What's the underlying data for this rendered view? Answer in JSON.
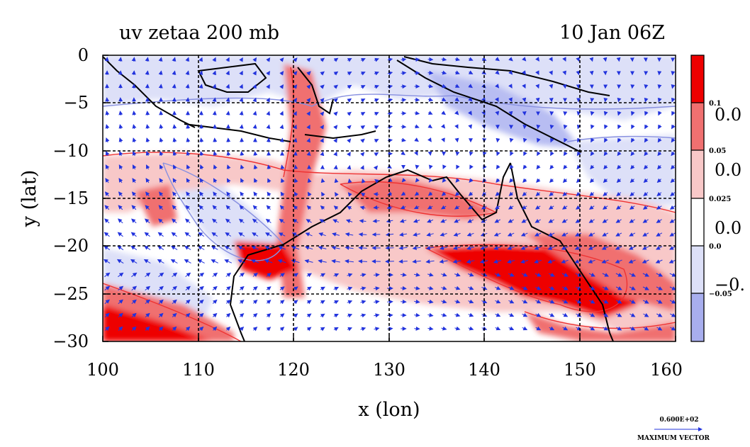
{
  "title_left": "uv zetaa 200 mb",
  "title_right": "10 Jan 06Z",
  "xlabel": "x (lon)",
  "ylabel": "y (lat)",
  "x_ticks": [
    "100",
    "110",
    "120",
    "130",
    "140",
    "150",
    "160"
  ],
  "y_ticks": [
    "0",
    "−5",
    "−10",
    "−15",
    "−20",
    "−25",
    "−30"
  ],
  "x_range": [
    100,
    160
  ],
  "y_range": [
    -30,
    0
  ],
  "grid_lon": [
    110,
    120,
    130,
    140,
    150
  ],
  "grid_lat": [
    -5,
    -10,
    -15,
    -20,
    -25
  ],
  "colorbar": {
    "levels": [
      {
        "color": "#ee0000"
      },
      {
        "color": "#f07070"
      },
      {
        "color": "#f8c8c8"
      },
      {
        "color": "#ffffff"
      },
      {
        "color": "#dde0f8"
      },
      {
        "color": "#a8aeee"
      }
    ],
    "small_labels": [
      "0.1",
      "0.05",
      "0.025",
      "0.0",
      "−0.05"
    ],
    "big_labels": [
      "0.0",
      "0.0",
      "0.0",
      "−0."
    ]
  },
  "vector_legend": {
    "value": "0.600E+02",
    "caption": "MAXIMUM VECTOR"
  },
  "colors": {
    "neg_light": "#dde0f8",
    "neg_mid": "#b8bdf2",
    "pos_light": "#f8c8c8",
    "pos_mid": "#f07070",
    "pos_strong": "#ee0000",
    "vectors": "#2233dd",
    "coast": "#000000"
  }
}
